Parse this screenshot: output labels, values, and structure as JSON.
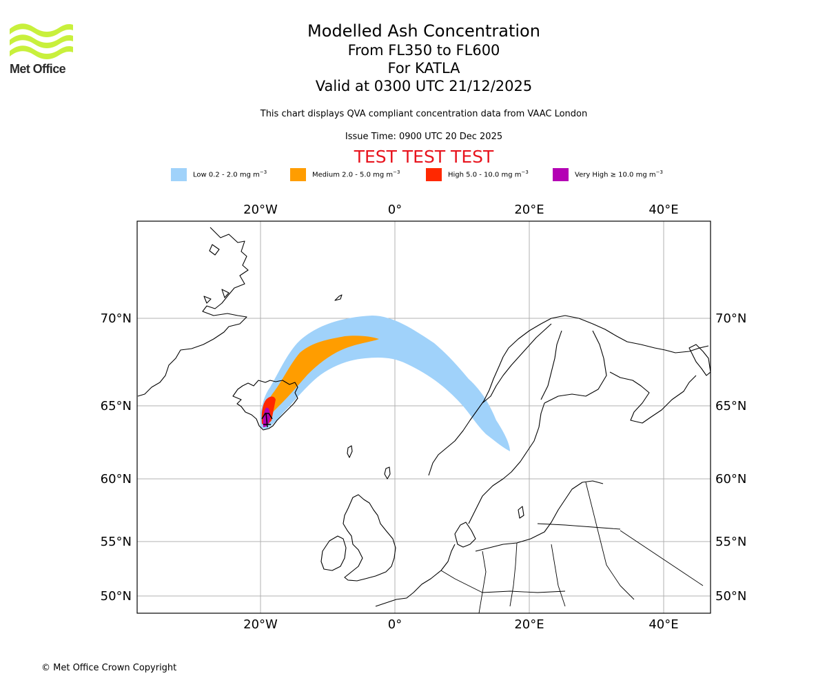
{
  "logo": {
    "text": "Met Office",
    "color": "#c8f03c"
  },
  "header": {
    "title": "Modelled Ash Concentration",
    "levels": "From FL350 to FL600",
    "volcano": "For KATLA",
    "valid": "Valid at 0300 UTC 21/12/2025",
    "description": "This chart displays QVA compliant concentration data from VAAC London",
    "issue_time": "Issue Time: 0900 UTC 20 Dec 2025",
    "test_banner": "TEST TEST TEST",
    "test_color": "#e8141e"
  },
  "legend": [
    {
      "label": "Low 0.2 - 2.0 mg m",
      "exp": "−3",
      "color": "#a0d2fa"
    },
    {
      "label": "Medium 2.0 - 5.0 mg m",
      "exp": "−3",
      "color": "#ff9d00"
    },
    {
      "label": "High 5.0 - 10.0 mg m",
      "exp": "−3",
      "color": "#ff2800"
    },
    {
      "label": "Very High  ≥  10.0 mg m",
      "exp": "−3",
      "color": "#b400b4"
    }
  ],
  "map": {
    "lon_ticks": [
      {
        "value": -20,
        "label": "20°W"
      },
      {
        "value": 0,
        "label": "0°"
      },
      {
        "value": 20,
        "label": "20°E"
      },
      {
        "value": 40,
        "label": "40°E"
      }
    ],
    "lat_ticks": [
      {
        "value": 70,
        "label": "70°N"
      },
      {
        "value": 65,
        "label": "65°N"
      },
      {
        "value": 60,
        "label": "60°N"
      },
      {
        "value": 55,
        "label": "55°N"
      },
      {
        "value": 50,
        "label": "50°N"
      }
    ],
    "volcano_name": "KATLA"
  },
  "footer": {
    "copyright": "© Met Office Crown Copyright"
  }
}
